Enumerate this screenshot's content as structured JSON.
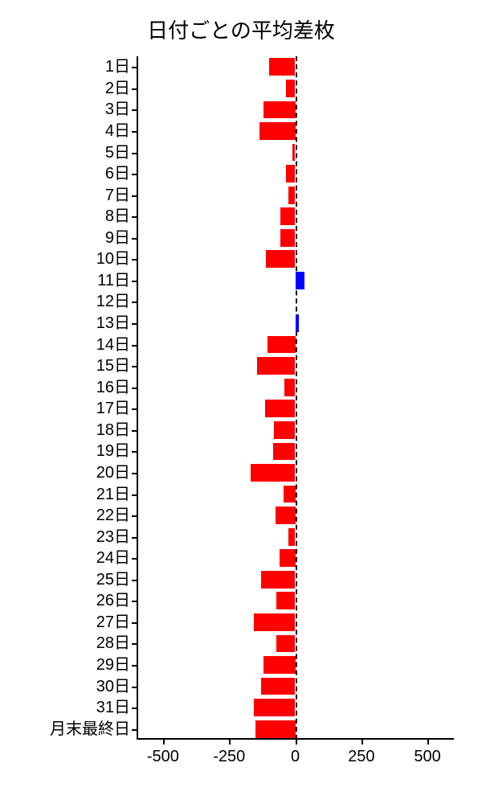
{
  "chart": {
    "type": "bar-horizontal",
    "title": "日付ごとの平均差枚",
    "title_fontsize": 26,
    "background_color": "#ffffff",
    "axis_color": "#000000",
    "zero_line": {
      "style": "dashed",
      "color": "#000000"
    },
    "label_fontsize": 20,
    "xlim": [
      -600,
      600
    ],
    "xticks": [
      -500,
      -250,
      0,
      250,
      500
    ],
    "xtick_labels": [
      "-500",
      "-250",
      "0",
      "250",
      "500"
    ],
    "bar_height_ratio": 0.82,
    "positive_color": "#0000ff",
    "negative_color": "#ff0000",
    "categories": [
      "1日",
      "2日",
      "3日",
      "4日",
      "5日",
      "6日",
      "7日",
      "8日",
      "9日",
      "10日",
      "11日",
      "12日",
      "13日",
      "14日",
      "15日",
      "16日",
      "17日",
      "18日",
      "19日",
      "20日",
      "21日",
      "22日",
      "23日",
      "24日",
      "25日",
      "26日",
      "27日",
      "28日",
      "29日",
      "30日",
      "31日",
      "月末最終日"
    ],
    "values": [
      -100,
      -35,
      -120,
      -135,
      -10,
      -35,
      -25,
      -55,
      -55,
      -110,
      35,
      0,
      15,
      -105,
      -145,
      -40,
      -115,
      -80,
      -85,
      -170,
      -45,
      -75,
      -25,
      -60,
      -130,
      -70,
      -155,
      -70,
      -120,
      -130,
      -155,
      -150
    ]
  }
}
